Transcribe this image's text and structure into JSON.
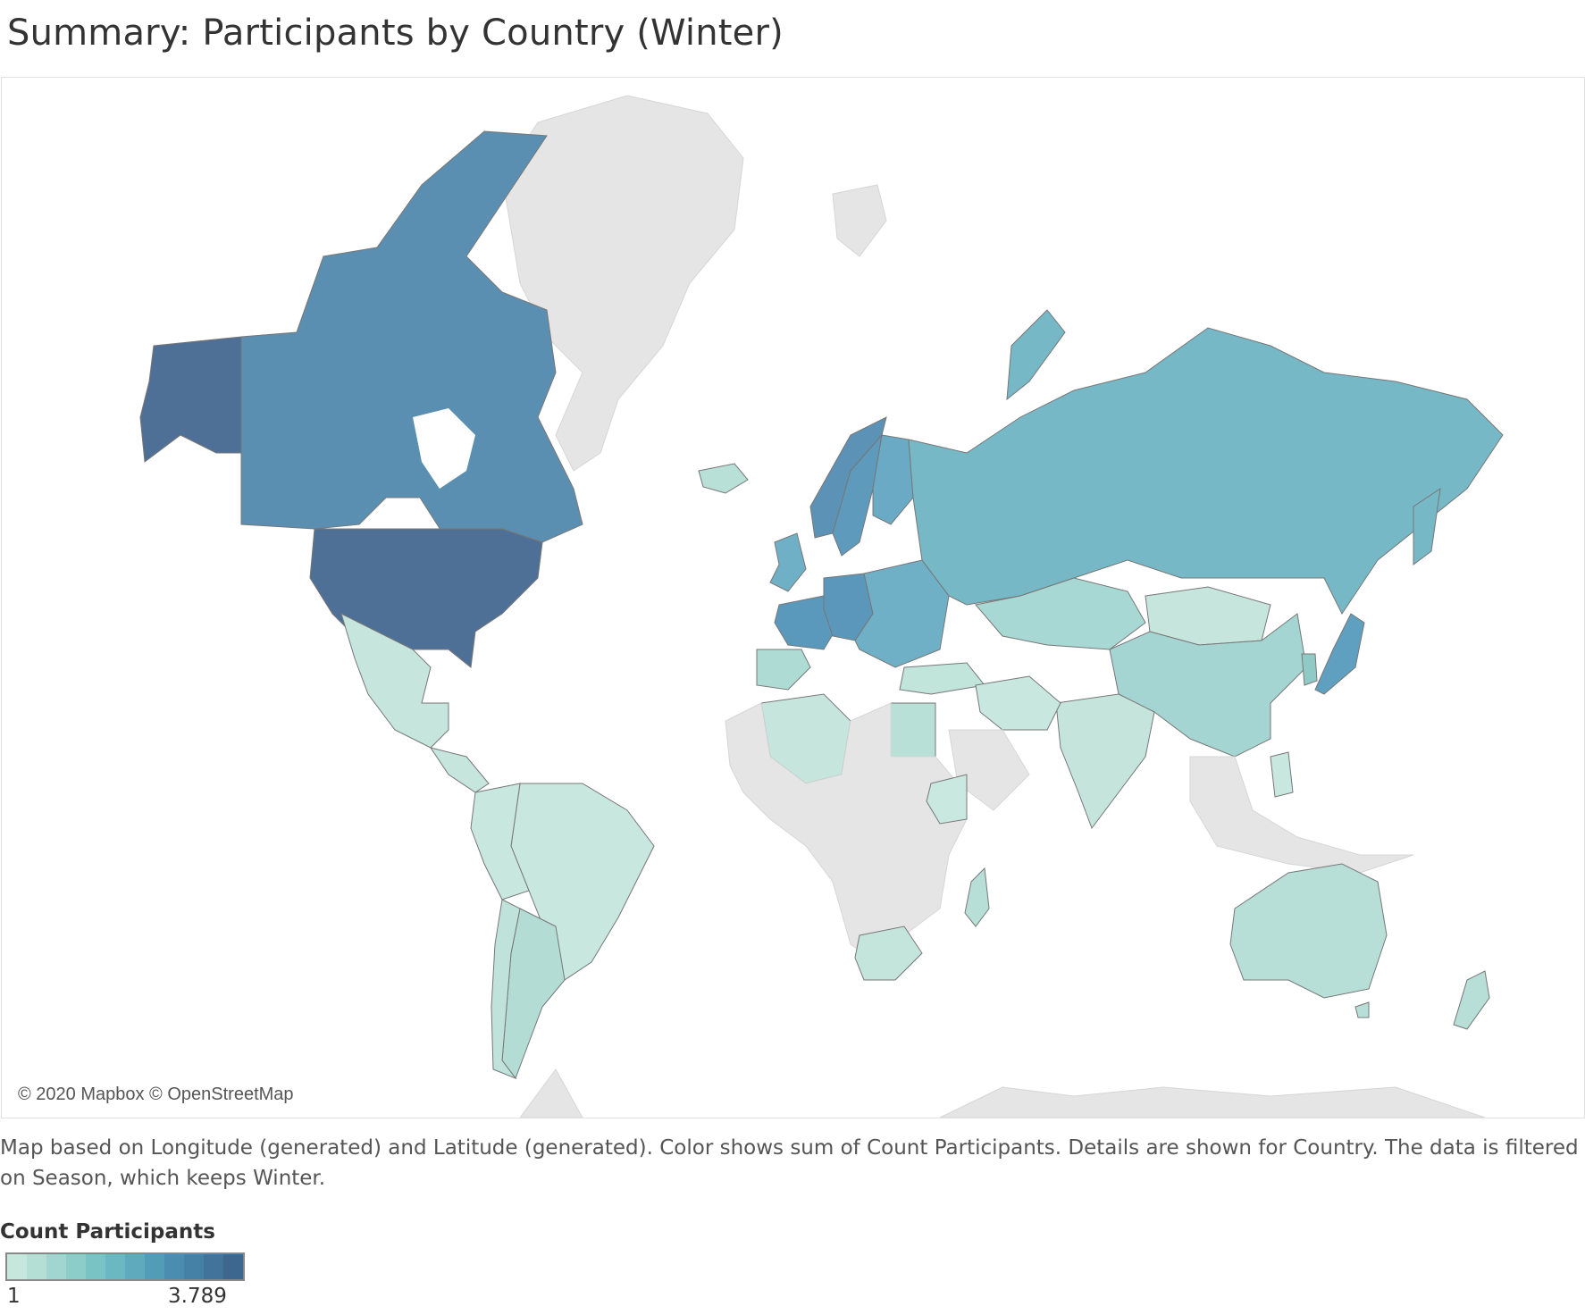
{
  "title": "Summary: Participants by Country (Winter)",
  "attribution": "© 2020 Mapbox © OpenStreetMap",
  "caption": "Map based on Longitude (generated) and Latitude (generated).  Color shows sum of Count Participants.  Details are shown for Country. The data is filtered on Season, which keeps Winter.",
  "legend": {
    "title": "Count Participants",
    "min_label": "1",
    "max_label": "3.789",
    "colors": [
      "#c6e8dc",
      "#b3dfd5",
      "#a0d6cf",
      "#8dcdc9",
      "#7ac3c4",
      "#6cb8c2",
      "#5faabd",
      "#529cb8",
      "#4a8db0",
      "#4580a6",
      "#41739b",
      "#3d678f"
    ]
  },
  "colors": {
    "no_data_land": "#e5e5e5",
    "border": "#777777"
  },
  "countries": [
    {
      "name": "United States",
      "color": "#4f7096"
    },
    {
      "name": "Canada",
      "color": "#5a8fb2"
    },
    {
      "name": "Russia",
      "color": "#76b8c6"
    },
    {
      "name": "China",
      "color": "#a5d5d2"
    },
    {
      "name": "Mongolia",
      "color": "#c6e6dd"
    },
    {
      "name": "Kazakhstan",
      "color": "#a8d8d3"
    },
    {
      "name": "Japan",
      "color": "#5f9fc0"
    },
    {
      "name": "Norway",
      "color": "#5b92b6"
    },
    {
      "name": "Sweden",
      "color": "#5e9abc"
    },
    {
      "name": "Finland",
      "color": "#6aaac4"
    },
    {
      "name": "Iceland",
      "color": "#b8e0d6"
    },
    {
      "name": "United Kingdom",
      "color": "#6fb0c6"
    },
    {
      "name": "France",
      "color": "#5a99bb"
    },
    {
      "name": "Germany",
      "color": "#5b97ba"
    },
    {
      "name": "Spain",
      "color": "#aedbd4"
    },
    {
      "name": "Australia",
      "color": "#b7dfd7"
    },
    {
      "name": "New Zealand",
      "color": "#b7dfd7"
    },
    {
      "name": "Mexico",
      "color": "#c6e6dd"
    },
    {
      "name": "Brazil",
      "color": "#c8e7de"
    },
    {
      "name": "Argentina",
      "color": "#b3dcd5"
    },
    {
      "name": "Chile",
      "color": "#bfe3da"
    },
    {
      "name": "India",
      "color": "#c5e5dc"
    },
    {
      "name": "Algeria",
      "color": "#c6e6dd"
    },
    {
      "name": "Egypt",
      "color": "#b8e0d6"
    },
    {
      "name": "South Africa",
      "color": "#c3e5dc"
    },
    {
      "name": "Madagascar",
      "color": "#b7dfd7"
    },
    {
      "name": "Ethiopia",
      "color": "#c9e8df"
    },
    {
      "name": "Iran",
      "color": "#c8e7de"
    },
    {
      "name": "Turkey",
      "color": "#c1e4db"
    },
    {
      "name": "South Korea",
      "color": "#8fcac7"
    },
    {
      "name": "Philippines",
      "color": "#c8e7de"
    }
  ]
}
